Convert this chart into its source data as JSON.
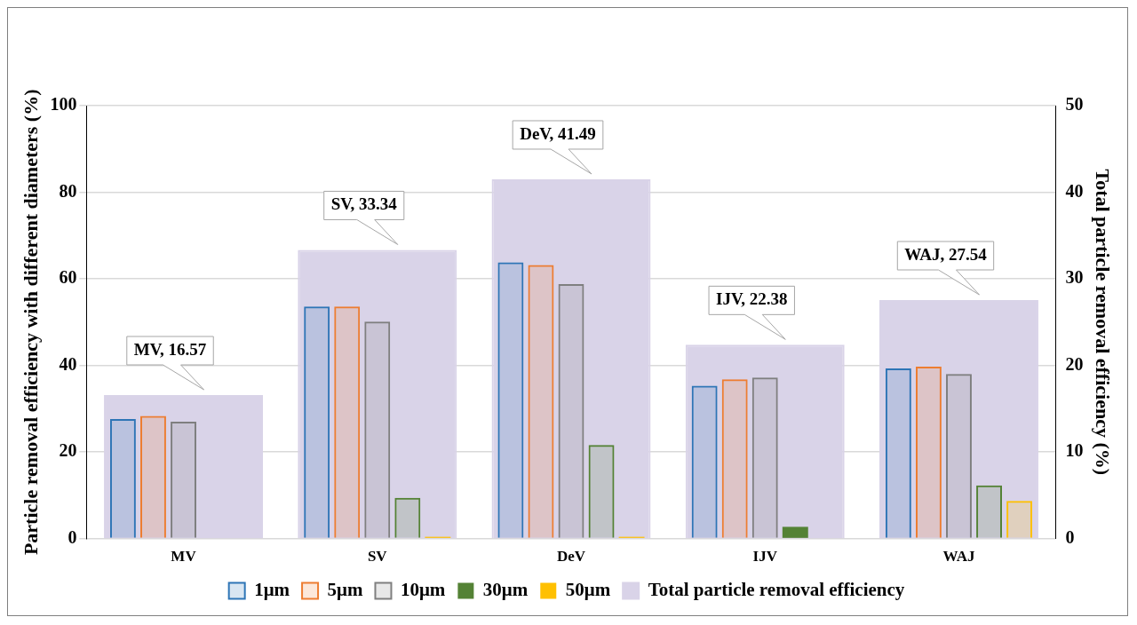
{
  "chart_data": {
    "type": "bar",
    "categories": [
      "MV",
      "SV",
      "DeV",
      "IJV",
      "WAJ"
    ],
    "ylabel": "Particle removal efficiency with different diameters (%)",
    "y2label": "Total particle removal efficiency (%)",
    "series": [
      {
        "name": "1μm",
        "color": "#2e75b6",
        "values": [
          27.6,
          53.6,
          63.8,
          35.3,
          39.3
        ]
      },
      {
        "name": "5μm",
        "color": "#ed7d31",
        "values": [
          28.3,
          53.6,
          63.2,
          36.8,
          39.7
        ]
      },
      {
        "name": "10μm",
        "color": "#7f7f7f",
        "values": [
          27.0,
          50.1,
          58.8,
          37.2,
          38.0
        ]
      },
      {
        "name": "30μm",
        "color": "#548235",
        "values": [
          0,
          9.4,
          21.6,
          2.7,
          12.3
        ]
      },
      {
        "name": "50μm",
        "color": "#ffc000",
        "values": [
          0,
          0.4,
          0.4,
          0,
          8.7
        ]
      },
      {
        "name": "Total particle removal efficiency",
        "color": "#d9d3e8",
        "axis": "y2",
        "values": [
          16.57,
          33.34,
          41.49,
          22.38,
          27.54
        ],
        "value_labels": [
          "MV, 16.57",
          "SV, 33.34",
          "DeV, 41.49",
          "IJV, 22.38",
          "WAJ, 27.54"
        ]
      }
    ],
    "ylim": [
      0,
      100
    ],
    "yticks": [
      0,
      20,
      40,
      60,
      80,
      100
    ],
    "y2lim": [
      0,
      50
    ],
    "y2ticks": [
      0,
      10,
      20,
      30,
      40,
      50
    ],
    "grid": "y",
    "legend": "bottom"
  }
}
